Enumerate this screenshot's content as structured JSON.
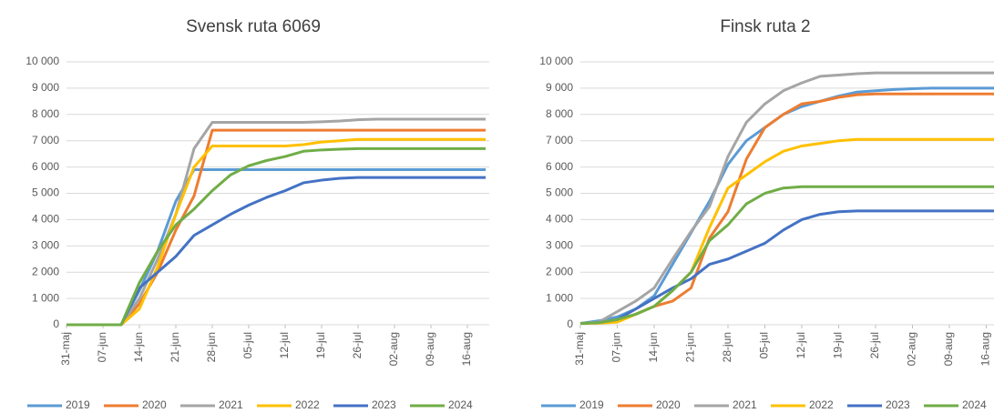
{
  "chart_data": [
    {
      "type": "line",
      "title": "Svensk ruta 6069",
      "categories": [
        "31-maj",
        null,
        "07-jun",
        null,
        "14-jun",
        null,
        "21-jun",
        null,
        "28-jun",
        null,
        "05-jul",
        null,
        "12-jul",
        null,
        "19-jul",
        null,
        "26-jul",
        null,
        "02-aug",
        null,
        "09-aug",
        null,
        "16-aug",
        null
      ],
      "ylim": [
        0,
        10000
      ],
      "yticks": [
        0,
        {
          "value": 1000,
          "label": "1 000"
        },
        {
          "value": 2000,
          "label": "2 000"
        },
        {
          "value": 3000,
          "label": "3 000"
        },
        {
          "value": 4000,
          "label": "4 000"
        },
        {
          "value": 5000,
          "label": "5 000"
        },
        {
          "value": 6000,
          "label": "6 000"
        },
        {
          "value": 7000,
          "label": "7 000"
        },
        {
          "value": 8000,
          "label": "8 000"
        },
        {
          "value": 9000,
          "label": "9 000"
        },
        {
          "value": 10000,
          "label": "10 000"
        }
      ],
      "grid": true,
      "legend": "bottom",
      "series": [
        {
          "name": "2019",
          "color": "#5b9bd5",
          "values": [
            0,
            0,
            0,
            0,
            1300,
            2800,
            4700,
            5900,
            5900,
            5900,
            5900,
            5900,
            5900,
            5900,
            5900,
            5900,
            5900,
            5900,
            5900,
            5900,
            5900,
            5900,
            5900,
            5900
          ]
        },
        {
          "name": "2020",
          "color": "#ed7d31",
          "values": [
            0,
            0,
            0,
            0,
            800,
            2000,
            3600,
            4900,
            7400,
            7400,
            7400,
            7400,
            7400,
            7400,
            7400,
            7400,
            7400,
            7400,
            7400,
            7400,
            7400,
            7400,
            7400,
            7400
          ]
        },
        {
          "name": "2021",
          "color": "#a5a5a5",
          "values": [
            0,
            0,
            0,
            0,
            1000,
            2500,
            4200,
            6700,
            7700,
            7700,
            7700,
            7700,
            7700,
            7700,
            7720,
            7750,
            7800,
            7820,
            7820,
            7820,
            7820,
            7820,
            7820,
            7820
          ]
        },
        {
          "name": "2022",
          "color": "#ffc000",
          "values": [
            0,
            0,
            0,
            0,
            600,
            2200,
            4200,
            6000,
            6800,
            6800,
            6800,
            6800,
            6800,
            6850,
            6950,
            7000,
            7050,
            7050,
            7050,
            7050,
            7050,
            7050,
            7050,
            7050
          ]
        },
        {
          "name": "2023",
          "color": "#4472c4",
          "values": [
            0,
            0,
            0,
            0,
            1400,
            2000,
            2600,
            3400,
            3800,
            4200,
            4550,
            4850,
            5100,
            5400,
            5500,
            5570,
            5600,
            5600,
            5600,
            5600,
            5600,
            5600,
            5600,
            5600
          ]
        },
        {
          "name": "2024",
          "color": "#70ad47",
          "values": [
            0,
            0,
            0,
            0,
            1600,
            2800,
            3800,
            4400,
            5100,
            5700,
            6050,
            6250,
            6400,
            6600,
            6650,
            6680,
            6700,
            6700,
            6700,
            6700,
            6700,
            6700,
            6700,
            6700
          ]
        }
      ]
    },
    {
      "type": "line",
      "title": "Finsk ruta 2",
      "categories": [
        "31-maj",
        null,
        "07-jun",
        null,
        "14-jun",
        null,
        "21-jun",
        null,
        "28-jun",
        null,
        "05-jul",
        null,
        "12-jul",
        null,
        "19-jul",
        null,
        "26-jul",
        null,
        "02-aug",
        null,
        "09-aug",
        null,
        "16-aug",
        null
      ],
      "ylim": [
        0,
        10000
      ],
      "yticks": [
        0,
        {
          "value": 1000,
          "label": "1 000"
        },
        {
          "value": 2000,
          "label": "2 000"
        },
        {
          "value": 3000,
          "label": "3 000"
        },
        {
          "value": 4000,
          "label": "4 000"
        },
        {
          "value": 5000,
          "label": "5 000"
        },
        {
          "value": 6000,
          "label": "6 000"
        },
        {
          "value": 7000,
          "label": "7 000"
        },
        {
          "value": 8000,
          "label": "8 000"
        },
        {
          "value": 9000,
          "label": "9 000"
        },
        {
          "value": 10000,
          "label": "10 000"
        }
      ],
      "grid": true,
      "legend": "bottom",
      "series": [
        {
          "name": "2019",
          "color": "#5b9bd5",
          "values": [
            50,
            150,
            300,
            600,
            1100,
            2300,
            3500,
            4700,
            6100,
            7000,
            7500,
            8000,
            8300,
            8500,
            8700,
            8850,
            8900,
            8950,
            8980,
            9000,
            9000,
            9000,
            9000,
            9000
          ]
        },
        {
          "name": "2020",
          "color": "#ed7d31",
          "values": [
            50,
            80,
            150,
            400,
            700,
            900,
            1400,
            3300,
            4300,
            6300,
            7500,
            8000,
            8400,
            8500,
            8650,
            8750,
            8780,
            8780,
            8780,
            8780,
            8780,
            8780,
            8780,
            8780
          ]
        },
        {
          "name": "2021",
          "color": "#a5a5a5",
          "values": [
            50,
            100,
            500,
            900,
            1400,
            2500,
            3550,
            4500,
            6400,
            7700,
            8400,
            8900,
            9200,
            9450,
            9500,
            9550,
            9580,
            9580,
            9580,
            9580,
            9580,
            9580,
            9580,
            9580
          ]
        },
        {
          "name": "2022",
          "color": "#ffc000",
          "values": [
            50,
            60,
            100,
            400,
            700,
            1300,
            2000,
            3700,
            5200,
            5700,
            6200,
            6600,
            6800,
            6900,
            7000,
            7050,
            7050,
            7050,
            7050,
            7050,
            7050,
            7050,
            7050,
            7050
          ]
        },
        {
          "name": "2023",
          "color": "#4472c4",
          "values": [
            50,
            80,
            200,
            600,
            1000,
            1400,
            1750,
            2300,
            2500,
            2800,
            3100,
            3600,
            4000,
            4200,
            4300,
            4330,
            4330,
            4330,
            4330,
            4330,
            4330,
            4330,
            4330,
            4330
          ]
        },
        {
          "name": "2024",
          "color": "#70ad47",
          "values": [
            50,
            80,
            200,
            400,
            700,
            1300,
            2000,
            3200,
            3800,
            4600,
            5000,
            5200,
            5250,
            5250,
            5250,
            5250,
            5250,
            5250,
            5250,
            5250,
            5250,
            5250,
            5250,
            5250
          ]
        }
      ]
    }
  ]
}
